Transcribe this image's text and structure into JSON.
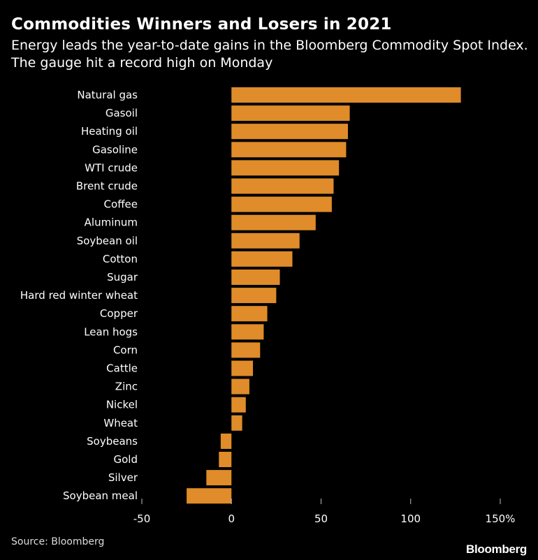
{
  "chart_data": {
    "type": "bar",
    "orientation": "horizontal",
    "title": "Commodities Winners and Losers in 2021",
    "subtitle": "Energy leads the year-to-date gains in the Bloomberg Commodity Spot Index. The gauge hit a record high on Monday",
    "categories": [
      "Natural gas",
      "Gasoil",
      "Heating oil",
      "Gasoline",
      "WTI crude",
      "Brent crude",
      "Coffee",
      "Aluminum",
      "Soybean oil",
      "Cotton",
      "Sugar",
      "Hard red winter wheat",
      "Copper",
      "Lean hogs",
      "Corn",
      "Cattle",
      "Zinc",
      "Nickel",
      "Wheat",
      "Soybeans",
      "Gold",
      "Silver",
      "Soybean meal"
    ],
    "values": [
      128,
      66,
      65,
      64,
      60,
      57,
      56,
      47,
      38,
      34,
      27,
      25,
      20,
      18,
      16,
      12,
      10,
      8,
      6,
      -6,
      -7,
      -14,
      -25
    ],
    "xlim": [
      -50,
      150
    ],
    "xticks": [
      -50,
      0,
      50,
      100,
      150
    ],
    "xtick_labels": [
      "-50",
      "0",
      "50",
      "100",
      "150%"
    ],
    "bar_color": "#e08c2a",
    "grid": false,
    "source": "Source: Bloomberg",
    "brand": "Bloomberg"
  }
}
